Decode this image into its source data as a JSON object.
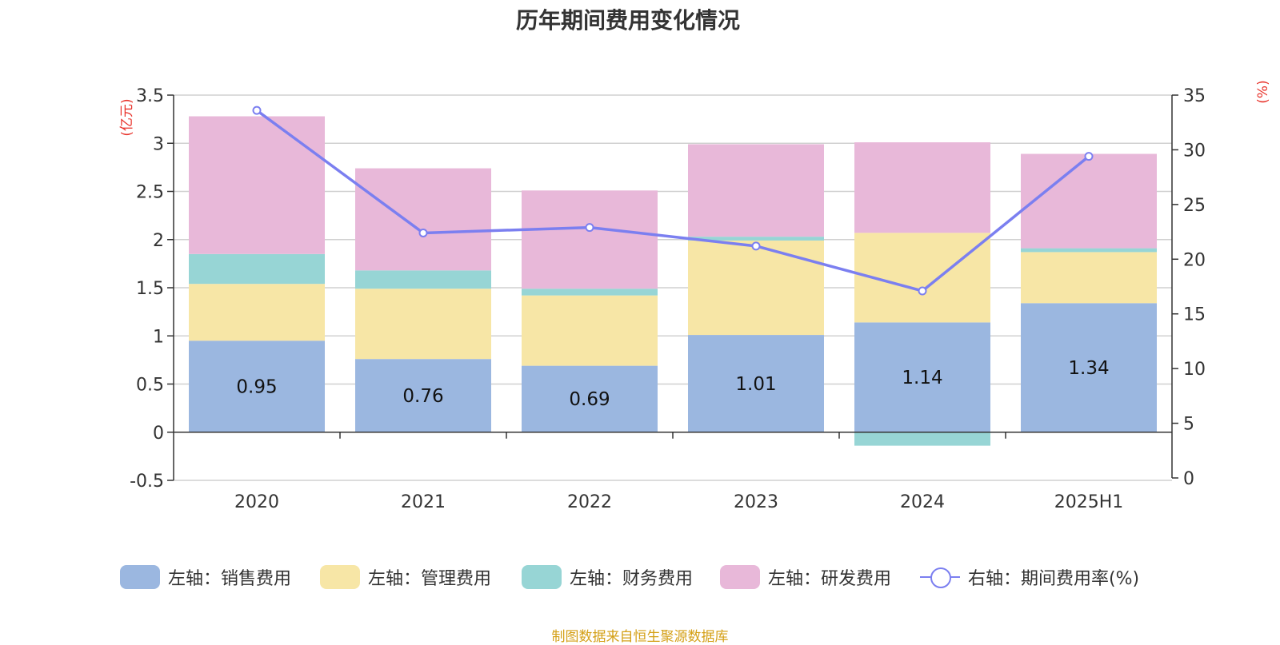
{
  "chart_data": {
    "type": "bar",
    "title": "历年期间费用变化情况",
    "categories": [
      "2020",
      "2021",
      "2022",
      "2023",
      "2024",
      "2025H1"
    ],
    "left_axis": {
      "unit_label": "(亿元)",
      "ylim": [
        -0.5,
        3.5
      ],
      "ticks": [
        "3.5",
        "3",
        "2.5",
        "2",
        "1.5",
        "1",
        "0.5",
        "0",
        "-0.5"
      ]
    },
    "right_axis": {
      "unit_label": "(%)",
      "ylim": [
        0,
        35
      ],
      "ticks": [
        "35",
        "30",
        "25",
        "20",
        "15",
        "10",
        "5",
        "0"
      ]
    },
    "series": [
      {
        "name": "左轴：销售费用",
        "type": "bar",
        "axis": "left",
        "color": "#9bb7e0",
        "values": [
          0.95,
          0.76,
          0.69,
          1.01,
          1.14,
          1.34
        ],
        "data_labels": [
          "0.95",
          "0.76",
          "0.69",
          "1.01",
          "1.14",
          "1.34"
        ]
      },
      {
        "name": "左轴：管理费用",
        "type": "bar",
        "axis": "left",
        "color": "#f7e6a6",
        "values": [
          0.59,
          0.73,
          0.73,
          0.98,
          0.93,
          0.53
        ]
      },
      {
        "name": "左轴：财务费用",
        "type": "bar",
        "axis": "left",
        "color": "#97d5d5",
        "values": [
          0.31,
          0.19,
          0.07,
          0.04,
          -0.14,
          0.04
        ]
      },
      {
        "name": "左轴：研发费用",
        "type": "bar",
        "axis": "left",
        "color": "#e8b8d9",
        "values": [
          1.43,
          1.06,
          1.02,
          0.96,
          0.94,
          0.98
        ]
      },
      {
        "name": "右轴：期间费用率(%)",
        "type": "line",
        "axis": "right",
        "color": "#7b7ff0",
        "values": [
          33.6,
          22.4,
          22.9,
          21.2,
          17.1,
          29.4
        ]
      }
    ],
    "grid": true,
    "legend_position": "bottom"
  },
  "footer": {
    "source": "制图数据来自恒生聚源数据库"
  }
}
